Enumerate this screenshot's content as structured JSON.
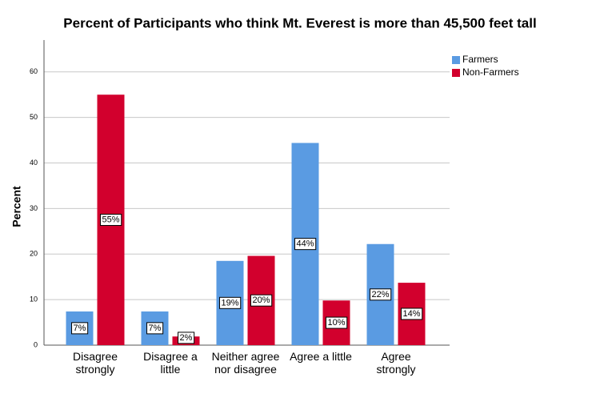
{
  "chart_data": {
    "type": "bar",
    "title": "Percent of Participants who think Mt. Everest is more than 45,500 feet tall",
    "y_label": "Percent",
    "categories": [
      "Disagree\nstrongly",
      "Disagree a\nlittle",
      "Neither agree\nnor disagree",
      "Agree a little",
      "Agree\nstrongly"
    ],
    "series": [
      {
        "name": "Farmers",
        "color": "#5a9be2",
        "values": [
          7.4,
          7.4,
          18.5,
          44.4,
          22.2
        ],
        "value_labels": [
          "7%",
          "7%",
          "19%",
          "44%",
          "22%"
        ]
      },
      {
        "name": "Non-Farmers",
        "color": "#d2002d",
        "values": [
          55,
          1.9,
          19.6,
          9.8,
          13.7
        ],
        "value_labels": [
          "55%",
          "2%",
          "20%",
          "10%",
          "14%"
        ]
      }
    ],
    "ylim": [
      0,
      67
    ],
    "yticks": [
      0,
      10,
      20,
      30,
      40,
      50,
      60
    ],
    "grid": true,
    "legend": "top-right"
  }
}
